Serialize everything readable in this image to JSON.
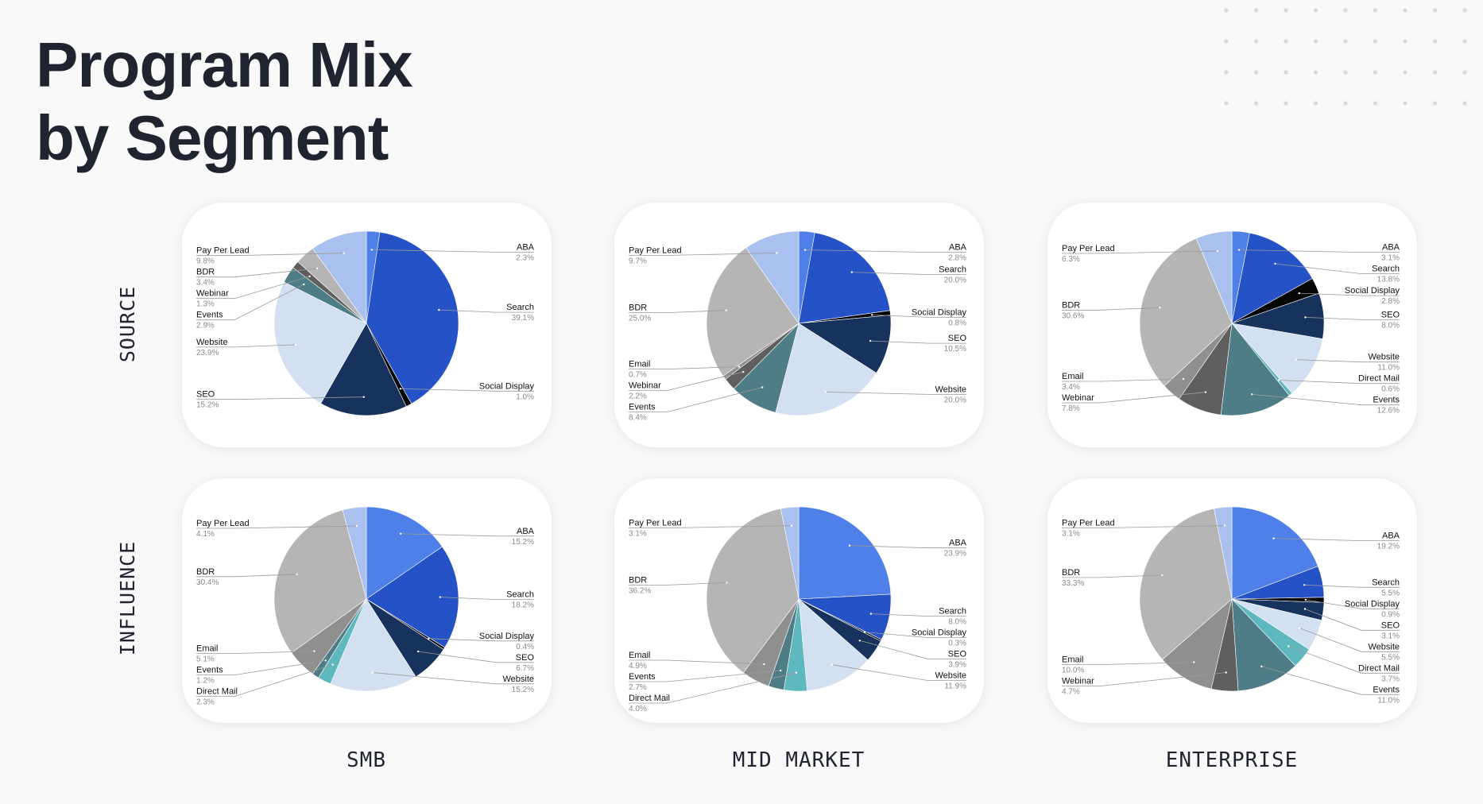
{
  "title": {
    "line1": "Program Mix",
    "line2": "by Segment"
  },
  "rows": {
    "source": "SOURCE",
    "influence": "INFLUENCE"
  },
  "columns": {
    "smb": "SMB",
    "mid_market": "MID MARKET",
    "enterprise": "ENTERPRISE"
  },
  "colors": {
    "ABA": "#4f7fe8",
    "Search": "#2652c8",
    "Social Display": "#050505",
    "SEO": "#18325e",
    "Website": "#d3e0f1",
    "Direct Mail": "#60b8bf",
    "Events": "#4f7d87",
    "Webinar": "#5f5f5f",
    "Email": "#8f8f8f",
    "BDR": "#b5b5b5",
    "Pay Per Lead": "#aac0ee"
  },
  "chart_data": [
    {
      "id": "smb-source",
      "type": "pie",
      "row": "SOURCE",
      "column": "SMB",
      "slices": [
        {
          "label": "ABA",
          "value": 2.3,
          "text": "2.3%"
        },
        {
          "label": "Search",
          "value": 39.1,
          "text": "39.1%"
        },
        {
          "label": "Social Display",
          "value": 1.0,
          "text": "1.0%"
        },
        {
          "label": "SEO",
          "value": 15.2,
          "text": "15.2%"
        },
        {
          "label": "Website",
          "value": 23.9,
          "text": "23.9%"
        },
        {
          "label": "Events",
          "value": 2.9,
          "text": "2.9%"
        },
        {
          "label": "Webinar",
          "value": 1.3,
          "text": "1.3%"
        },
        {
          "label": "BDR",
          "value": 3.4,
          "text": "3.4%"
        },
        {
          "label": "Pay Per Lead",
          "value": 9.8,
          "text": "9.8%"
        }
      ]
    },
    {
      "id": "mm-source",
      "type": "pie",
      "row": "SOURCE",
      "column": "MID MARKET",
      "slices": [
        {
          "label": "ABA",
          "value": 2.8,
          "text": "2.8%"
        },
        {
          "label": "Search",
          "value": 20.0,
          "text": "20.0%"
        },
        {
          "label": "Social Display",
          "value": 0.8,
          "text": "0.8%"
        },
        {
          "label": "SEO",
          "value": 10.5,
          "text": "10.5%"
        },
        {
          "label": "Website",
          "value": 20.0,
          "text": "20.0%"
        },
        {
          "label": "Events",
          "value": 8.4,
          "text": "8.4%"
        },
        {
          "label": "Webinar",
          "value": 2.2,
          "text": "2.2%"
        },
        {
          "label": "Email",
          "value": 0.7,
          "text": "0.7%"
        },
        {
          "label": "BDR",
          "value": 25.0,
          "text": "25.0%"
        },
        {
          "label": "Pay Per Lead",
          "value": 9.7,
          "text": "9.7%"
        }
      ]
    },
    {
      "id": "ent-source",
      "type": "pie",
      "row": "SOURCE",
      "column": "ENTERPRISE",
      "slices": [
        {
          "label": "ABA",
          "value": 3.1,
          "text": "3.1%"
        },
        {
          "label": "Search",
          "value": 13.8,
          "text": "13.8%"
        },
        {
          "label": "Social Display",
          "value": 2.8,
          "text": "2.8%"
        },
        {
          "label": "SEO",
          "value": 8.0,
          "text": "8.0%"
        },
        {
          "label": "Website",
          "value": 11.0,
          "text": "11.0%"
        },
        {
          "label": "Direct Mail",
          "value": 0.6,
          "text": "0.6%"
        },
        {
          "label": "Events",
          "value": 12.6,
          "text": "12.6%"
        },
        {
          "label": "Webinar",
          "value": 7.8,
          "text": "7.8%"
        },
        {
          "label": "Email",
          "value": 3.4,
          "text": "3.4%"
        },
        {
          "label": "BDR",
          "value": 30.6,
          "text": "30.6%"
        },
        {
          "label": "Pay Per Lead",
          "value": 6.3,
          "text": "6.3%"
        }
      ]
    },
    {
      "id": "smb-influence",
      "type": "pie",
      "row": "INFLUENCE",
      "column": "SMB",
      "slices": [
        {
          "label": "ABA",
          "value": 15.2,
          "text": "15.2%"
        },
        {
          "label": "Search",
          "value": 18.2,
          "text": "18.2%"
        },
        {
          "label": "Social Display",
          "value": 0.4,
          "text": "0.4%"
        },
        {
          "label": "SEO",
          "value": 6.7,
          "text": "6.7%"
        },
        {
          "label": "Website",
          "value": 15.2,
          "text": "15.2%"
        },
        {
          "label": "Direct Mail",
          "value": 2.3,
          "text": "2.3%"
        },
        {
          "label": "Events",
          "value": 1.2,
          "text": "1.2%"
        },
        {
          "label": "Email",
          "value": 5.1,
          "text": "5.1%"
        },
        {
          "label": "BDR",
          "value": 30.4,
          "text": "30.4%"
        },
        {
          "label": "Pay Per Lead",
          "value": 4.1,
          "text": "4.1%"
        }
      ]
    },
    {
      "id": "mm-influence",
      "type": "pie",
      "row": "INFLUENCE",
      "column": "MID MARKET",
      "slices": [
        {
          "label": "ABA",
          "value": 23.9,
          "text": "23.9%"
        },
        {
          "label": "Search",
          "value": 8.0,
          "text": "8.0%"
        },
        {
          "label": "Social Display",
          "value": 0.3,
          "text": "0.3%"
        },
        {
          "label": "SEO",
          "value": 3.9,
          "text": "3.9%"
        },
        {
          "label": "Website",
          "value": 11.9,
          "text": "11.9%"
        },
        {
          "label": "Direct Mail",
          "value": 4.0,
          "text": "4.0%"
        },
        {
          "label": "Events",
          "value": 2.7,
          "text": "2.7%"
        },
        {
          "label": "Email",
          "value": 4.9,
          "text": "4.9%"
        },
        {
          "label": "BDR",
          "value": 36.2,
          "text": "36.2%"
        },
        {
          "label": "Pay Per Lead",
          "value": 3.1,
          "text": "3.1%"
        }
      ]
    },
    {
      "id": "ent-influence",
      "type": "pie",
      "row": "INFLUENCE",
      "column": "ENTERPRISE",
      "slices": [
        {
          "label": "ABA",
          "value": 19.2,
          "text": "19.2%"
        },
        {
          "label": "Search",
          "value": 5.5,
          "text": "5.5%"
        },
        {
          "label": "Social Display",
          "value": 0.9,
          "text": "0.9%"
        },
        {
          "label": "SEO",
          "value": 3.1,
          "text": "3.1%"
        },
        {
          "label": "Website",
          "value": 5.5,
          "text": "5.5%"
        },
        {
          "label": "Direct Mail",
          "value": 3.7,
          "text": "3.7%"
        },
        {
          "label": "Events",
          "value": 11.0,
          "text": "11.0%"
        },
        {
          "label": "Webinar",
          "value": 4.7,
          "text": "4.7%"
        },
        {
          "label": "Email",
          "value": 10.0,
          "text": "10.0%"
        },
        {
          "label": "BDR",
          "value": 33.3,
          "text": "33.3%"
        },
        {
          "label": "Pay Per Lead",
          "value": 3.1,
          "text": "3.1%"
        }
      ]
    }
  ]
}
